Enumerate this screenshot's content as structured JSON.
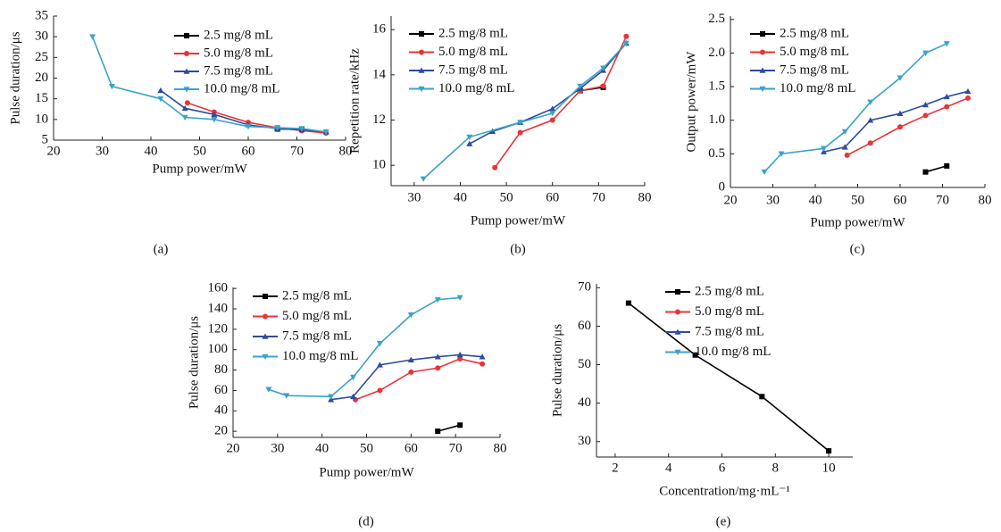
{
  "chart_data": [
    {
      "type": "line",
      "caption": "(a)",
      "x_label": "Pump power/mW",
      "y_label": "Pulse duration/μs",
      "xlim": [
        20,
        80
      ],
      "ylim": [
        5,
        35
      ],
      "xticks": [
        20,
        30,
        40,
        50,
        60,
        70,
        80
      ],
      "yticks": [
        5,
        10,
        15,
        20,
        25,
        30,
        35
      ],
      "series": [
        {
          "name": "2.5 mg/8 mL",
          "color": "#000000",
          "marker": "square",
          "x": [
            66,
            71
          ],
          "values": [
            7.7,
            7.6
          ]
        },
        {
          "name": "5.0 mg/8 mL",
          "color": "#e8343a",
          "marker": "circle",
          "x": [
            47.5,
            53,
            60,
            66,
            71,
            76
          ],
          "values": [
            14,
            11.8,
            9.3,
            8,
            7.3,
            6.7
          ]
        },
        {
          "name": "7.5 mg/8 mL",
          "color": "#2e4b9e",
          "marker": "triangle-up",
          "x": [
            42,
            47,
            53,
            60,
            66,
            71,
            76
          ],
          "values": [
            17,
            12.7,
            11.2,
            8.7,
            7.8,
            7.5,
            7
          ]
        },
        {
          "name": "10.0 mg/8 mL",
          "color": "#3aa3c7",
          "marker": "triangle-down",
          "x": [
            28,
            32,
            42,
            47,
            53,
            60,
            66,
            71,
            76
          ],
          "values": [
            30,
            18,
            15,
            10.5,
            10,
            8.3,
            8,
            7.8,
            7
          ]
        }
      ]
    },
    {
      "type": "line",
      "caption": "(b)",
      "x_label": "Pump power/mW",
      "y_label": "Repetition rate/kHz",
      "xlim": [
        25,
        80
      ],
      "ylim": [
        9.1,
        16.6
      ],
      "xticks": [
        30,
        40,
        50,
        60,
        70,
        80
      ],
      "yticks": [
        10,
        12,
        14,
        16
      ],
      "series": [
        {
          "name": "2.5 mg/8 mL",
          "color": "#000000",
          "marker": "square",
          "x": [
            66,
            71
          ],
          "values": [
            13.3,
            13.45
          ]
        },
        {
          "name": "5.0 mg/8 mL",
          "color": "#e8343a",
          "marker": "circle",
          "x": [
            47.5,
            53,
            60,
            66,
            71,
            76
          ],
          "values": [
            9.9,
            11.45,
            12,
            13.3,
            13.5,
            15.7
          ]
        },
        {
          "name": "7.5 mg/8 mL",
          "color": "#2e4b9e",
          "marker": "triangle-up",
          "x": [
            42,
            47,
            53,
            60,
            66,
            71,
            76
          ],
          "values": [
            10.95,
            11.5,
            11.9,
            12.5,
            13.4,
            14.2,
            15.4
          ]
        },
        {
          "name": "10.0 mg/8 mL",
          "color": "#3aa3c7",
          "marker": "triangle-down",
          "x": [
            32,
            42,
            53,
            60,
            66,
            71,
            76
          ],
          "values": [
            9.4,
            11.25,
            11.9,
            12.3,
            13.5,
            14.3,
            15.4
          ]
        }
      ]
    },
    {
      "type": "line",
      "caption": "(c)",
      "x_label": "Pump power/mW",
      "y_label": "Output power/mW",
      "xlim": [
        20,
        80
      ],
      "ylim": [
        0,
        2.55
      ],
      "xticks": [
        20,
        30,
        40,
        50,
        60,
        70,
        80
      ],
      "yticks": [
        0,
        0.5,
        {
          "value": 1,
          "label": "1.0"
        },
        1.5,
        {
          "value": 2,
          "label": "2.0"
        },
        2.5
      ],
      "series": [
        {
          "name": "2.5 mg/8 mL",
          "color": "#000000",
          "marker": "square",
          "x": [
            66,
            71
          ],
          "values": [
            0.23,
            0.32
          ]
        },
        {
          "name": "5.0 mg/8 mL",
          "color": "#e8343a",
          "marker": "circle",
          "x": [
            47.5,
            53,
            60,
            66,
            71,
            76
          ],
          "values": [
            0.48,
            0.66,
            0.9,
            1.07,
            1.2,
            1.33
          ]
        },
        {
          "name": "7.5 mg/8 mL",
          "color": "#2e4b9e",
          "marker": "triangle-up",
          "x": [
            42,
            47,
            53,
            60,
            66,
            71,
            76
          ],
          "values": [
            0.53,
            0.6,
            1,
            1.1,
            1.23,
            1.35,
            1.43
          ]
        },
        {
          "name": "10.0 mg/8 mL",
          "color": "#3aa3c7",
          "marker": "triangle-down",
          "x": [
            28,
            32,
            42,
            47,
            53,
            60,
            66,
            71
          ],
          "values": [
            0.23,
            0.5,
            0.58,
            0.83,
            1.27,
            1.63,
            2,
            2.14
          ]
        }
      ]
    },
    {
      "type": "line",
      "caption": "(d)",
      "x_label": "Pump power/mW",
      "y_label": "Pulse duration/μs",
      "xlim": [
        20,
        80
      ],
      "ylim": [
        14,
        161
      ],
      "xticks": [
        20,
        30,
        40,
        50,
        60,
        70,
        80
      ],
      "yticks": [
        20,
        40,
        60,
        80,
        100,
        120,
        140,
        160
      ],
      "series": [
        {
          "name": "2.5 mg/8 mL",
          "color": "#000000",
          "marker": "square",
          "x": [
            66,
            71
          ],
          "values": [
            20,
            26
          ]
        },
        {
          "name": "5.0 mg/8 mL",
          "color": "#e8343a",
          "marker": "circle",
          "x": [
            47.5,
            53,
            60,
            66,
            71,
            76
          ],
          "values": [
            51,
            60,
            78,
            82,
            91,
            86
          ]
        },
        {
          "name": "7.5 mg/8 mL",
          "color": "#2e4b9e",
          "marker": "triangle-up",
          "x": [
            42,
            47,
            53,
            60,
            66,
            71,
            76
          ],
          "values": [
            51,
            54,
            85,
            90,
            93,
            95,
            93
          ]
        },
        {
          "name": "10.0 mg/8 mL",
          "color": "#3aa3c7",
          "marker": "triangle-down",
          "x": [
            28,
            32,
            42,
            47,
            53,
            60,
            66,
            71
          ],
          "values": [
            61,
            55,
            54,
            73,
            106,
            134,
            149,
            151
          ]
        }
      ]
    },
    {
      "type": "line",
      "caption": "(e)",
      "x_label": "Concentration/mg·mL⁻¹",
      "y_label": "Pulse duration/μs",
      "xlim": [
        1.3,
        10.9
      ],
      "ylim": [
        26,
        71
      ],
      "xticks": [
        2,
        4,
        6,
        8,
        10
      ],
      "yticks": [
        30,
        40,
        50,
        60,
        70
      ],
      "series": [
        {
          "name": "2.5 mg/8 mL",
          "color": "#000000",
          "marker": "square",
          "x": [
            2.5,
            5,
            7.5,
            10
          ],
          "values": [
            66,
            52.5,
            41.7,
            27.6
          ]
        },
        {
          "name": "5.0 mg/8 mL",
          "color": "#e8343a",
          "marker": "circle",
          "x": [],
          "values": []
        },
        {
          "name": "7.5 mg/8 mL",
          "color": "#2e4b9e",
          "marker": "triangle-up",
          "x": [],
          "values": []
        },
        {
          "name": "10.0 mg/8 mL",
          "color": "#3aa3c7",
          "marker": "triangle-down",
          "x": [],
          "values": []
        }
      ]
    }
  ]
}
